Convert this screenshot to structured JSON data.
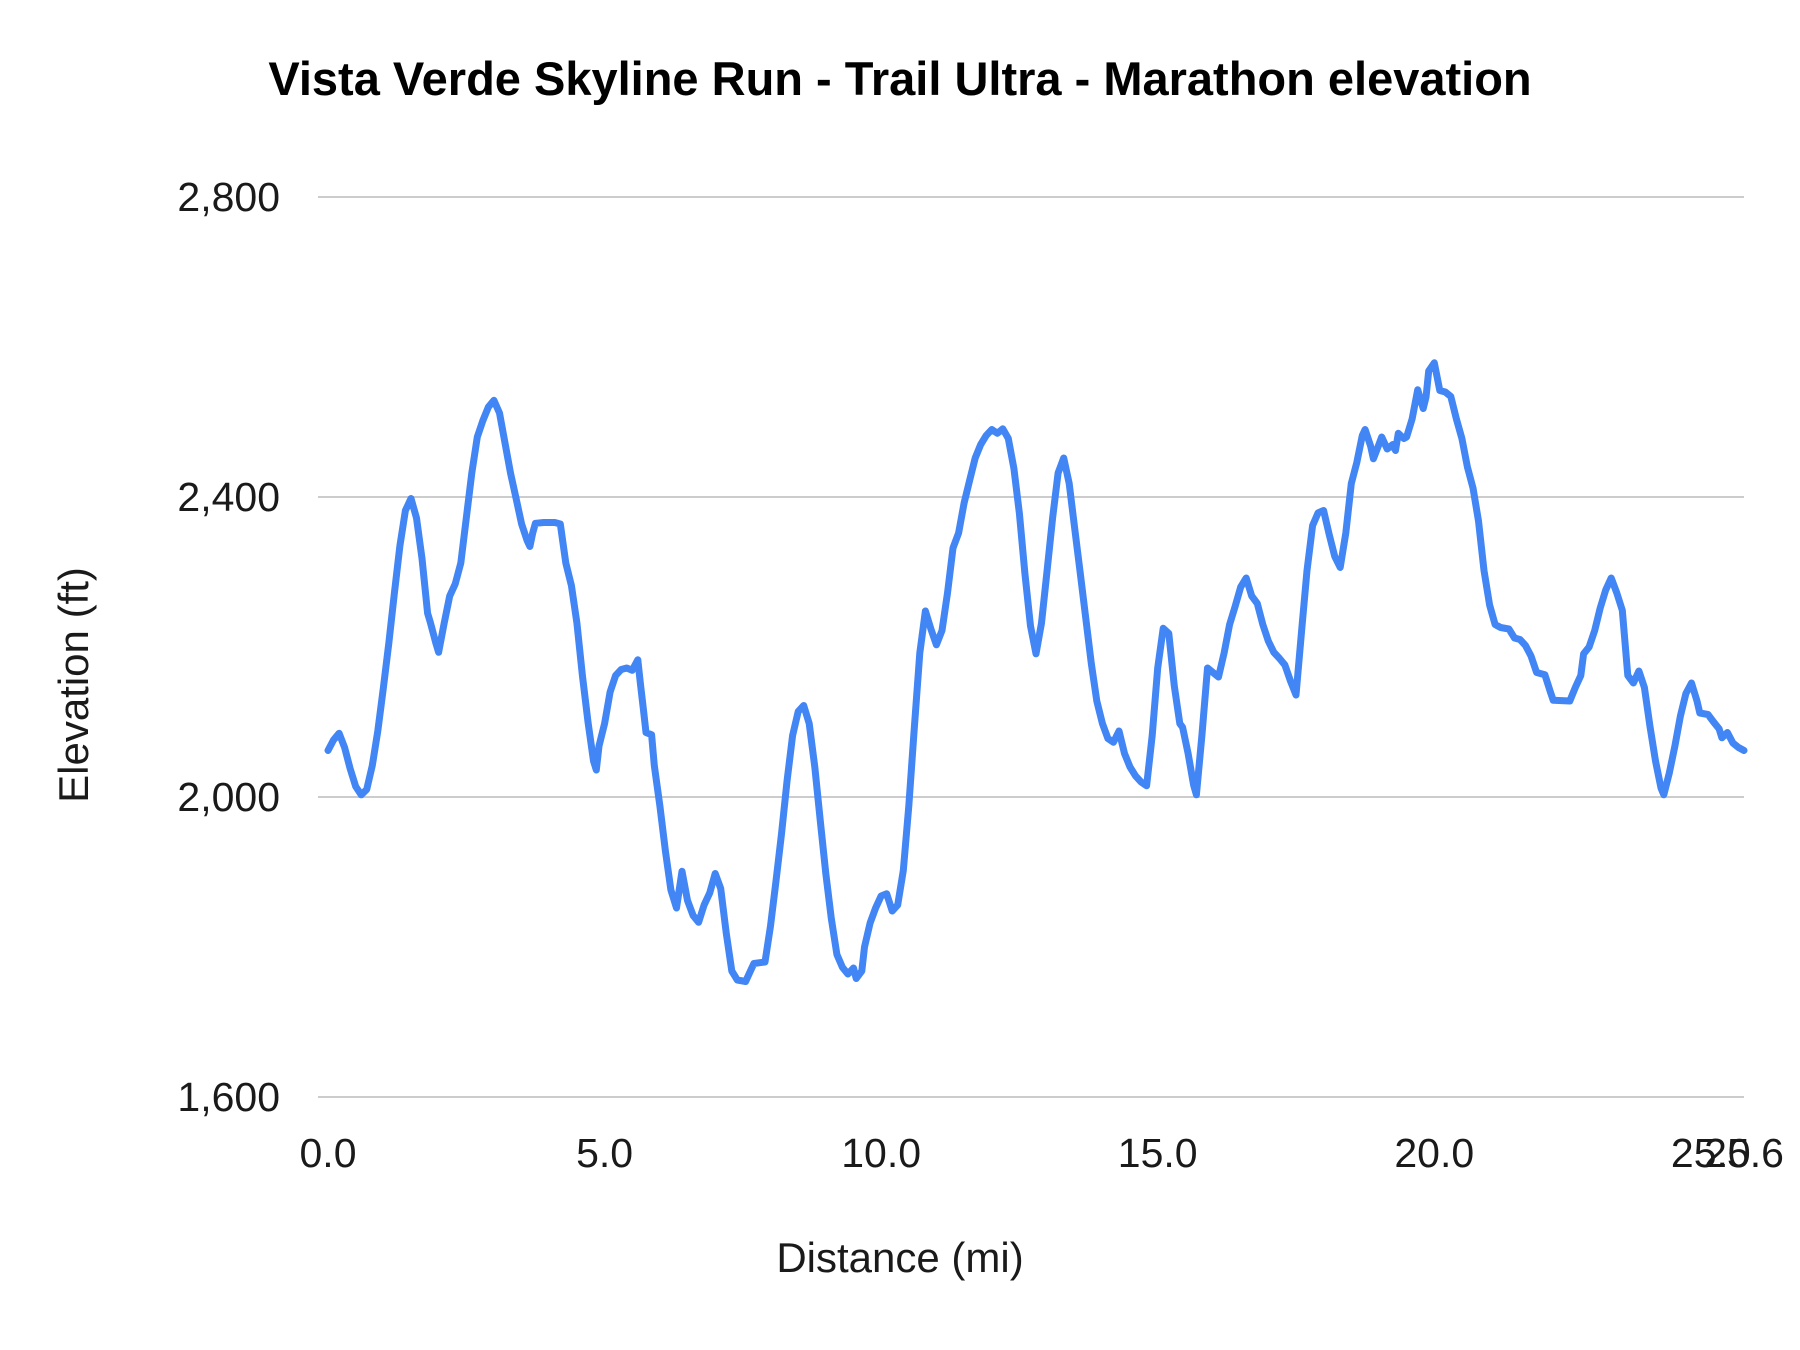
{
  "chart_data": {
    "type": "line",
    "title": "Vista Verde Skyline Run - Trail Ultra - Marathon elevation",
    "xlabel": "Distance (mi)",
    "ylabel": "Elevation (ft)",
    "xlim": [
      0,
      25.6
    ],
    "ylim": [
      1600,
      2800
    ],
    "grid": "horizontal",
    "legend_position": "none",
    "background_color": "#ffffff",
    "gridline_color": "#cccccc",
    "text_color": "#1a1a1a",
    "x_ticks": [
      {
        "value": 0,
        "label": "0.0"
      },
      {
        "value": 5,
        "label": "5.0"
      },
      {
        "value": 10,
        "label": "10.0"
      },
      {
        "value": 15,
        "label": "15.0"
      },
      {
        "value": 20,
        "label": "20.0"
      },
      {
        "value": 25,
        "label": "25.0"
      },
      {
        "value": 25.6,
        "label": "25.6"
      }
    ],
    "y_ticks": [
      {
        "value": 1600,
        "label": "1,600"
      },
      {
        "value": 2000,
        "label": "2,000"
      },
      {
        "value": 2400,
        "label": "2,400"
      },
      {
        "value": 2800,
        "label": "2,800"
      }
    ],
    "series": [
      {
        "name": "elevation",
        "color": "#4285F4",
        "points": [
          [
            0.0,
            2062
          ],
          [
            0.1,
            2076
          ],
          [
            0.2,
            2085
          ],
          [
            0.3,
            2066
          ],
          [
            0.4,
            2038
          ],
          [
            0.5,
            2014
          ],
          [
            0.6,
            2003
          ],
          [
            0.7,
            2010
          ],
          [
            0.8,
            2042
          ],
          [
            0.9,
            2088
          ],
          [
            1.0,
            2145
          ],
          [
            1.1,
            2205
          ],
          [
            1.2,
            2272
          ],
          [
            1.3,
            2335
          ],
          [
            1.4,
            2382
          ],
          [
            1.5,
            2398
          ],
          [
            1.6,
            2372
          ],
          [
            1.7,
            2318
          ],
          [
            1.8,
            2245
          ],
          [
            1.85,
            2233
          ],
          [
            1.95,
            2205
          ],
          [
            2.0,
            2193
          ],
          [
            2.1,
            2232
          ],
          [
            2.2,
            2268
          ],
          [
            2.3,
            2284
          ],
          [
            2.4,
            2312
          ],
          [
            2.5,
            2372
          ],
          [
            2.6,
            2432
          ],
          [
            2.7,
            2480
          ],
          [
            2.8,
            2502
          ],
          [
            2.9,
            2520
          ],
          [
            3.0,
            2529
          ],
          [
            3.1,
            2512
          ],
          [
            3.2,
            2472
          ],
          [
            3.3,
            2432
          ],
          [
            3.4,
            2398
          ],
          [
            3.5,
            2364
          ],
          [
            3.6,
            2342
          ],
          [
            3.65,
            2334
          ],
          [
            3.7,
            2352
          ],
          [
            3.75,
            2365
          ],
          [
            3.9,
            2366
          ],
          [
            4.1,
            2366
          ],
          [
            4.2,
            2364
          ],
          [
            4.3,
            2312
          ],
          [
            4.4,
            2282
          ],
          [
            4.5,
            2232
          ],
          [
            4.6,
            2162
          ],
          [
            4.7,
            2100
          ],
          [
            4.8,
            2048
          ],
          [
            4.85,
            2036
          ],
          [
            4.9,
            2068
          ],
          [
            5.0,
            2098
          ],
          [
            5.1,
            2140
          ],
          [
            5.2,
            2162
          ],
          [
            5.3,
            2170
          ],
          [
            5.4,
            2172
          ],
          [
            5.5,
            2169
          ],
          [
            5.6,
            2183
          ],
          [
            5.65,
            2150
          ],
          [
            5.7,
            2118
          ],
          [
            5.75,
            2086
          ],
          [
            5.85,
            2083
          ],
          [
            5.9,
            2042
          ],
          [
            6.0,
            1988
          ],
          [
            6.1,
            1928
          ],
          [
            6.2,
            1876
          ],
          [
            6.3,
            1852
          ],
          [
            6.4,
            1901
          ],
          [
            6.5,
            1862
          ],
          [
            6.6,
            1842
          ],
          [
            6.7,
            1833
          ],
          [
            6.8,
            1856
          ],
          [
            6.9,
            1872
          ],
          [
            7.0,
            1898
          ],
          [
            7.1,
            1878
          ],
          [
            7.2,
            1818
          ],
          [
            7.3,
            1768
          ],
          [
            7.4,
            1756
          ],
          [
            7.55,
            1754
          ],
          [
            7.65,
            1770
          ],
          [
            7.7,
            1778
          ],
          [
            7.9,
            1780
          ],
          [
            8.0,
            1828
          ],
          [
            8.1,
            1888
          ],
          [
            8.2,
            1952
          ],
          [
            8.3,
            2022
          ],
          [
            8.4,
            2082
          ],
          [
            8.5,
            2114
          ],
          [
            8.6,
            2122
          ],
          [
            8.7,
            2098
          ],
          [
            8.8,
            2040
          ],
          [
            8.9,
            1968
          ],
          [
            9.0,
            1898
          ],
          [
            9.1,
            1838
          ],
          [
            9.2,
            1790
          ],
          [
            9.3,
            1773
          ],
          [
            9.4,
            1764
          ],
          [
            9.5,
            1772
          ],
          [
            9.55,
            1758
          ],
          [
            9.65,
            1768
          ],
          [
            9.7,
            1800
          ],
          [
            9.8,
            1832
          ],
          [
            9.9,
            1852
          ],
          [
            10.0,
            1868
          ],
          [
            10.1,
            1871
          ],
          [
            10.2,
            1848
          ],
          [
            10.3,
            1856
          ],
          [
            10.4,
            1902
          ],
          [
            10.5,
            1988
          ],
          [
            10.6,
            2092
          ],
          [
            10.7,
            2192
          ],
          [
            10.8,
            2248
          ],
          [
            10.9,
            2224
          ],
          [
            11.0,
            2203
          ],
          [
            11.1,
            2222
          ],
          [
            11.2,
            2272
          ],
          [
            11.3,
            2332
          ],
          [
            11.4,
            2352
          ],
          [
            11.5,
            2392
          ],
          [
            11.6,
            2422
          ],
          [
            11.7,
            2452
          ],
          [
            11.8,
            2470
          ],
          [
            11.9,
            2482
          ],
          [
            12.0,
            2490
          ],
          [
            12.1,
            2485
          ],
          [
            12.2,
            2491
          ],
          [
            12.3,
            2478
          ],
          [
            12.4,
            2438
          ],
          [
            12.5,
            2378
          ],
          [
            12.6,
            2298
          ],
          [
            12.7,
            2228
          ],
          [
            12.8,
            2191
          ],
          [
            12.9,
            2232
          ],
          [
            13.0,
            2302
          ],
          [
            13.1,
            2372
          ],
          [
            13.2,
            2432
          ],
          [
            13.3,
            2452
          ],
          [
            13.4,
            2418
          ],
          [
            13.5,
            2358
          ],
          [
            13.6,
            2298
          ],
          [
            13.7,
            2238
          ],
          [
            13.8,
            2178
          ],
          [
            13.9,
            2128
          ],
          [
            14.0,
            2098
          ],
          [
            14.1,
            2078
          ],
          [
            14.2,
            2073
          ],
          [
            14.3,
            2088
          ],
          [
            14.4,
            2058
          ],
          [
            14.5,
            2040
          ],
          [
            14.6,
            2028
          ],
          [
            14.7,
            2020
          ],
          [
            14.8,
            2015
          ],
          [
            14.9,
            2082
          ],
          [
            15.0,
            2172
          ],
          [
            15.1,
            2225
          ],
          [
            15.2,
            2218
          ],
          [
            15.3,
            2148
          ],
          [
            15.4,
            2098
          ],
          [
            15.45,
            2093
          ],
          [
            15.55,
            2058
          ],
          [
            15.65,
            2016
          ],
          [
            15.7,
            2003
          ],
          [
            15.8,
            2082
          ],
          [
            15.9,
            2172
          ],
          [
            16.0,
            2166
          ],
          [
            16.1,
            2160
          ],
          [
            16.2,
            2192
          ],
          [
            16.3,
            2230
          ],
          [
            16.4,
            2254
          ],
          [
            16.5,
            2280
          ],
          [
            16.6,
            2292
          ],
          [
            16.7,
            2268
          ],
          [
            16.8,
            2258
          ],
          [
            16.9,
            2230
          ],
          [
            17.0,
            2208
          ],
          [
            17.1,
            2193
          ],
          [
            17.2,
            2185
          ],
          [
            17.3,
            2176
          ],
          [
            17.4,
            2155
          ],
          [
            17.5,
            2136
          ],
          [
            17.6,
            2220
          ],
          [
            17.7,
            2302
          ],
          [
            17.8,
            2362
          ],
          [
            17.9,
            2379
          ],
          [
            18.0,
            2382
          ],
          [
            18.1,
            2350
          ],
          [
            18.2,
            2321
          ],
          [
            18.3,
            2306
          ],
          [
            18.4,
            2352
          ],
          [
            18.5,
            2418
          ],
          [
            18.6,
            2446
          ],
          [
            18.7,
            2482
          ],
          [
            18.75,
            2490
          ],
          [
            18.85,
            2468
          ],
          [
            18.9,
            2451
          ],
          [
            19.0,
            2470
          ],
          [
            19.05,
            2480
          ],
          [
            19.15,
            2464
          ],
          [
            19.25,
            2470
          ],
          [
            19.3,
            2462
          ],
          [
            19.35,
            2485
          ],
          [
            19.45,
            2478
          ],
          [
            19.5,
            2480
          ],
          [
            19.6,
            2504
          ],
          [
            19.7,
            2543
          ],
          [
            19.8,
            2518
          ],
          [
            19.85,
            2533
          ],
          [
            19.9,
            2568
          ],
          [
            20.0,
            2579
          ],
          [
            20.1,
            2542
          ],
          [
            20.2,
            2540
          ],
          [
            20.3,
            2534
          ],
          [
            20.4,
            2504
          ],
          [
            20.5,
            2478
          ],
          [
            20.6,
            2440
          ],
          [
            20.7,
            2412
          ],
          [
            20.8,
            2368
          ],
          [
            20.9,
            2302
          ],
          [
            21.0,
            2256
          ],
          [
            21.1,
            2230
          ],
          [
            21.2,
            2226
          ],
          [
            21.35,
            2224
          ],
          [
            21.45,
            2212
          ],
          [
            21.55,
            2210
          ],
          [
            21.65,
            2202
          ],
          [
            21.75,
            2188
          ],
          [
            21.85,
            2166
          ],
          [
            22.0,
            2163
          ],
          [
            22.1,
            2140
          ],
          [
            22.15,
            2129
          ],
          [
            22.45,
            2128
          ],
          [
            22.55,
            2146
          ],
          [
            22.65,
            2162
          ],
          [
            22.7,
            2191
          ],
          [
            22.8,
            2200
          ],
          [
            22.9,
            2222
          ],
          [
            23.0,
            2252
          ],
          [
            23.1,
            2276
          ],
          [
            23.2,
            2292
          ],
          [
            23.3,
            2272
          ],
          [
            23.4,
            2249
          ],
          [
            23.5,
            2162
          ],
          [
            23.6,
            2152
          ],
          [
            23.7,
            2168
          ],
          [
            23.8,
            2146
          ],
          [
            23.9,
            2094
          ],
          [
            24.0,
            2048
          ],
          [
            24.1,
            2012
          ],
          [
            24.15,
            2003
          ],
          [
            24.25,
            2032
          ],
          [
            24.35,
            2068
          ],
          [
            24.45,
            2108
          ],
          [
            24.55,
            2138
          ],
          [
            24.65,
            2152
          ],
          [
            24.75,
            2128
          ],
          [
            24.8,
            2112
          ],
          [
            24.95,
            2110
          ],
          [
            25.05,
            2100
          ],
          [
            25.15,
            2091
          ],
          [
            25.2,
            2079
          ],
          [
            25.3,
            2086
          ],
          [
            25.4,
            2072
          ],
          [
            25.5,
            2066
          ],
          [
            25.6,
            2062
          ]
        ]
      }
    ]
  }
}
